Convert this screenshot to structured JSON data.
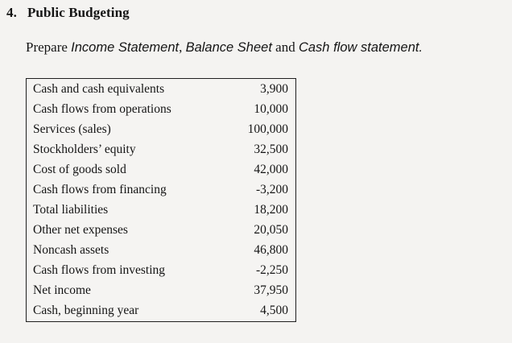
{
  "page": {
    "background": "#f4f3f1",
    "text_color": "#151515",
    "border_color": "#1f1f1f"
  },
  "heading": {
    "number": "4.",
    "title": "Public Budgeting"
  },
  "instruction": {
    "prefix": "Prepare ",
    "item1": "Income Statement",
    "sep1": ", ",
    "item2": "Balance Sheet",
    "conjunction": " and ",
    "item3": "Cash flow statement."
  },
  "table": {
    "rows": [
      {
        "label": "Cash and cash equivalents",
        "value": "3,900"
      },
      {
        "label": "Cash flows from operations",
        "value": "10,000"
      },
      {
        "label": "Services (sales)",
        "value": "100,000"
      },
      {
        "label": "Stockholders’ equity",
        "value": "32,500"
      },
      {
        "label": "Cost of goods sold",
        "value": "42,000"
      },
      {
        "label": "Cash flows from financing",
        "value": "-3,200"
      },
      {
        "label": "Total liabilities",
        "value": "18,200"
      },
      {
        "label": "Other net expenses",
        "value": "20,050"
      },
      {
        "label": "Noncash assets",
        "value": "46,800"
      },
      {
        "label": "Cash flows from investing",
        "value": "-2,250"
      },
      {
        "label": "Net income",
        "value": "37,950"
      },
      {
        "label": "Cash, beginning year",
        "value": "4,500"
      }
    ]
  }
}
